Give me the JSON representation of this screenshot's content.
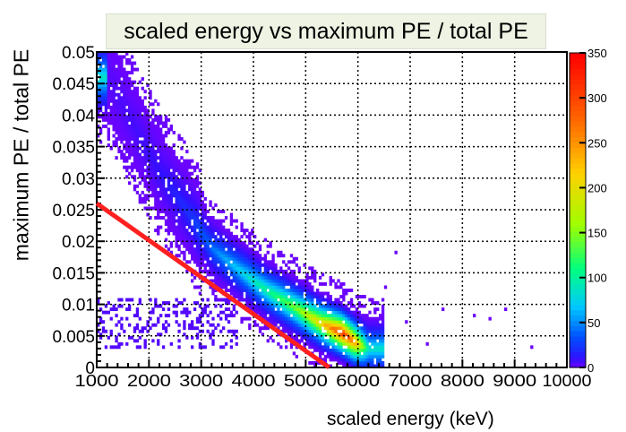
{
  "chart_data": {
    "type": "heatmap",
    "title": "scaled energy vs maximum PE / total PE",
    "xlabel": "scaled energy (keV)",
    "ylabel": "maximum PE / total PE",
    "xlim": [
      1000,
      10000
    ],
    "ylim": [
      0,
      0.05
    ],
    "x_ticks": [
      "1000",
      "2000",
      "3000",
      "4000",
      "5000",
      "6000",
      "7000",
      "8000",
      "9000",
      "10000"
    ],
    "y_ticks": [
      "0",
      "0.005",
      "0.01",
      "0.015",
      "0.02",
      "0.025",
      "0.03",
      "0.035",
      "0.04",
      "0.045",
      "0.05"
    ],
    "z_range": [
      0,
      350
    ],
    "z_ticks": [
      "0",
      "50",
      "100",
      "150",
      "200",
      "250",
      "300",
      "350"
    ],
    "colormap": [
      "#7d00ff",
      "#3010ff",
      "#0050ff",
      "#00c8ff",
      "#00ff80",
      "#a0ff00",
      "#ffd000",
      "#ff6000",
      "#ff0000"
    ],
    "grid": true,
    "cut_line": {
      "color": "#ff2020",
      "points": [
        [
          1000,
          0.026
        ],
        [
          5450,
          0
        ]
      ]
    },
    "density_ridge": [
      {
        "x": 1200,
        "y": 0.046,
        "z": 3
      },
      {
        "x": 1600,
        "y": 0.04,
        "z": 5
      },
      {
        "x": 2200,
        "y": 0.031,
        "z": 10
      },
      {
        "x": 2800,
        "y": 0.024,
        "z": 22
      },
      {
        "x": 3200,
        "y": 0.019,
        "z": 45
      },
      {
        "x": 3800,
        "y": 0.015,
        "z": 80
      },
      {
        "x": 4300,
        "y": 0.012,
        "z": 110
      },
      {
        "x": 4800,
        "y": 0.0095,
        "z": 150
      },
      {
        "x": 5300,
        "y": 0.007,
        "z": 220
      },
      {
        "x": 5700,
        "y": 0.0055,
        "z": 330
      },
      {
        "x": 5950,
        "y": 0.004,
        "z": 260
      },
      {
        "x": 6200,
        "y": 0.003,
        "z": 90
      }
    ],
    "low_band": {
      "x": [
        1000,
        3700
      ],
      "y": [
        0.003,
        0.011
      ],
      "z": 4
    },
    "isolated_points": [
      {
        "x": 6700,
        "y": 0.018,
        "z": 1
      },
      {
        "x": 6500,
        "y": 0.0125,
        "z": 1
      },
      {
        "x": 7600,
        "y": 0.009,
        "z": 1
      },
      {
        "x": 8200,
        "y": 0.008,
        "z": 1
      },
      {
        "x": 8500,
        "y": 0.0075,
        "z": 1
      },
      {
        "x": 9300,
        "y": 0.003,
        "z": 1
      },
      {
        "x": 7300,
        "y": 0.0035,
        "z": 1
      },
      {
        "x": 6900,
        "y": 0.007,
        "z": 1
      },
      {
        "x": 8800,
        "y": 0.009,
        "z": 1
      }
    ]
  }
}
